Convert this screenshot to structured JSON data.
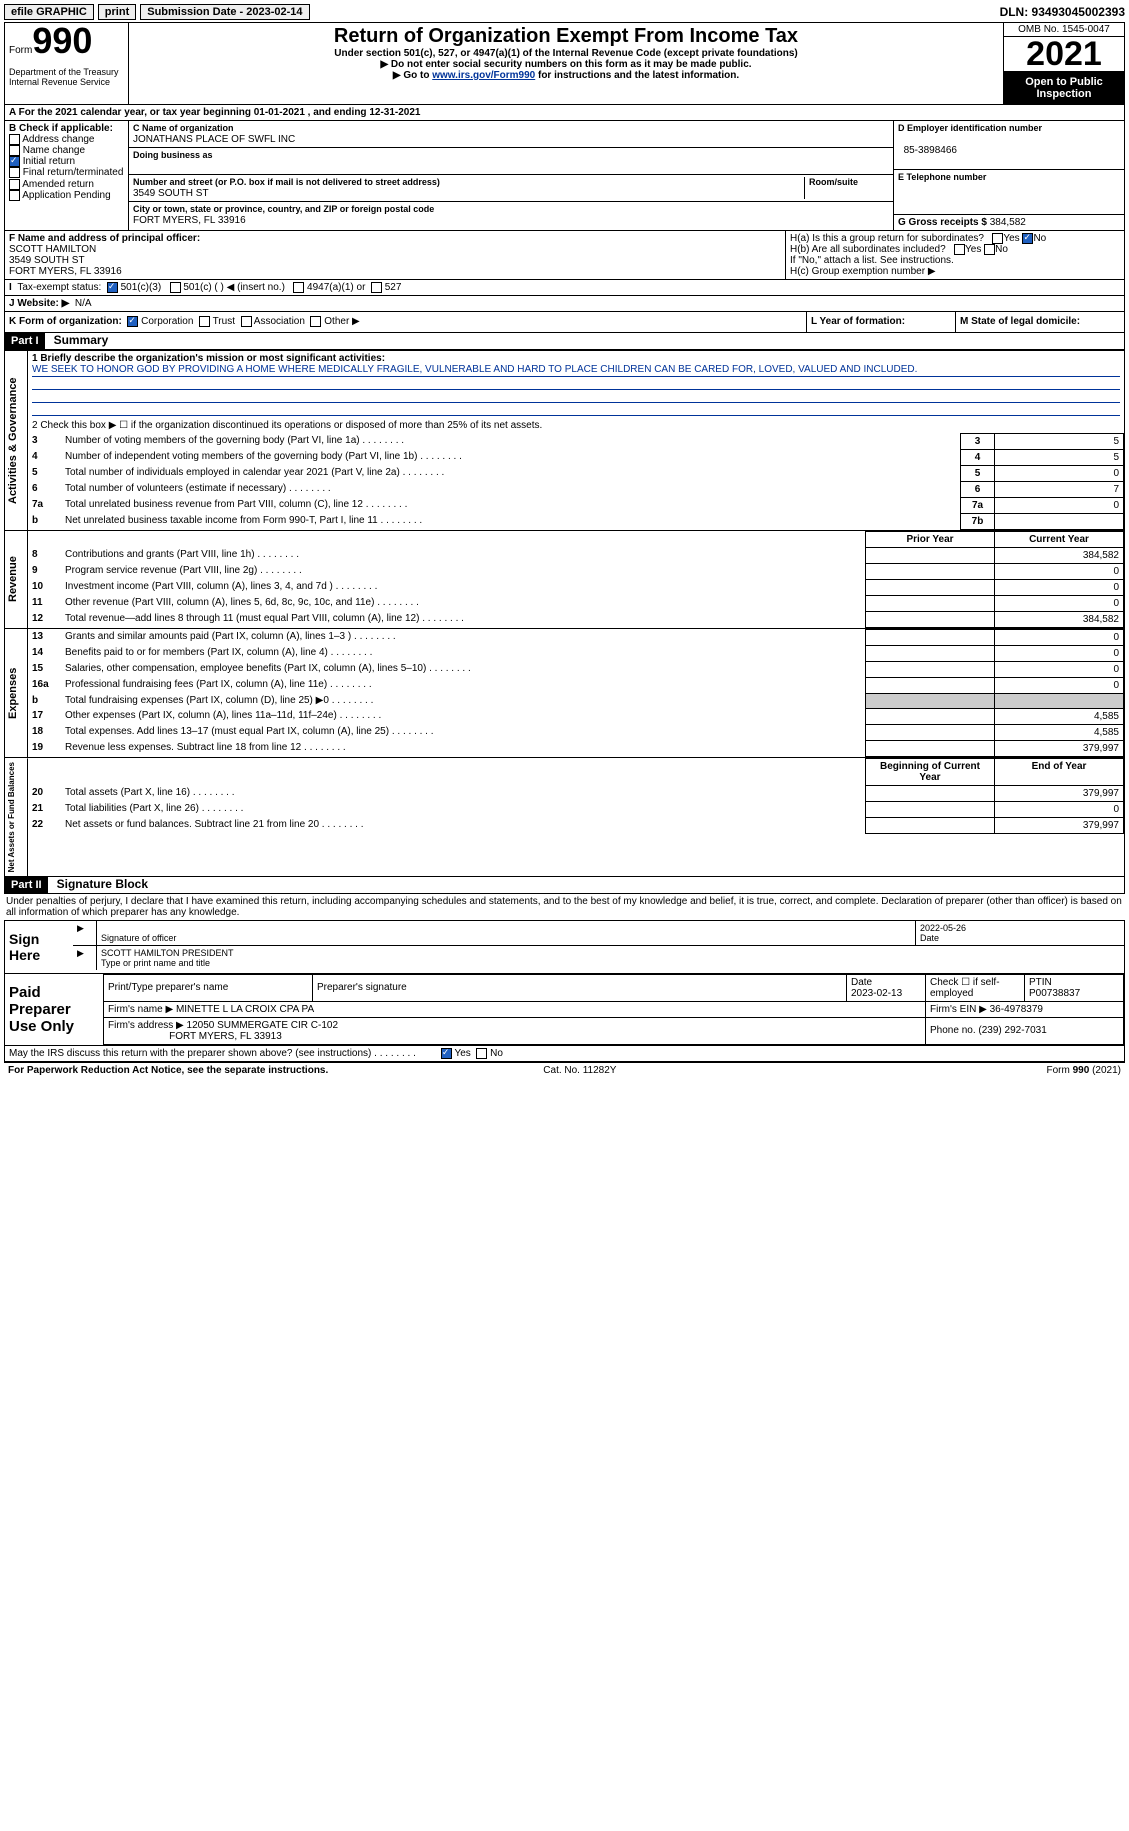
{
  "topbar": {
    "efile": "efile GRAPHIC",
    "print": "print",
    "submission": "Submission Date - 2023-02-14",
    "dln": "DLN: 93493045002393"
  },
  "header": {
    "form_label": "Form",
    "form_num": "990",
    "dept": "Department of the Treasury",
    "irs": "Internal Revenue Service",
    "title": "Return of Organization Exempt From Income Tax",
    "sub": "Under section 501(c), 527, or 4947(a)(1) of the Internal Revenue Code (except private foundations)",
    "instr1": "▶ Do not enter social security numbers on this form as it may be made public.",
    "instr2_pre": "▶ Go to ",
    "instr2_link": "www.irs.gov/Form990",
    "instr2_post": " for instructions and the latest information.",
    "omb": "OMB No. 1545-0047",
    "year": "2021",
    "open": "Open to Public Inspection"
  },
  "row_a": "A For the 2021 calendar year, or tax year beginning 01-01-2021    , and ending 12-31-2021",
  "section_b": {
    "header": "B Check if applicable:",
    "items": [
      "Address change",
      "Name change",
      "Initial return",
      "Final return/terminated",
      "Amended return",
      "Application Pending"
    ],
    "checked_idx": 2
  },
  "section_c": {
    "name_lbl": "C Name of organization",
    "name": "JONATHANS PLACE OF SWFL INC",
    "dba_lbl": "Doing business as",
    "addr_lbl": "Number and street (or P.O. box if mail is not delivered to street address)",
    "room_lbl": "Room/suite",
    "addr": "3549 SOUTH ST",
    "city_lbl": "City or town, state or province, country, and ZIP or foreign postal code",
    "city": "FORT MYERS, FL  33916"
  },
  "section_d": {
    "ein_lbl": "D Employer identification number",
    "ein": "85-3898466",
    "phone_lbl": "E Telephone number",
    "gross_lbl": "G Gross receipts $",
    "gross": "384,582"
  },
  "section_f": {
    "lbl": "F Name and address of principal officer:",
    "name": "SCOTT HAMILTON",
    "addr1": "3549 SOUTH ST",
    "addr2": "FORT MYERS, FL  33916"
  },
  "section_h": {
    "ha": "H(a)  Is this a group return for subordinates?",
    "hb": "H(b)  Are all subordinates included?",
    "hb_note": "If \"No,\" attach a list. See instructions.",
    "hc": "H(c)  Group exemption number ▶",
    "yes": "Yes",
    "no": "No"
  },
  "tax_status": {
    "lbl": "Tax-exempt status:",
    "opts": [
      "501(c)(3)",
      "501(c) (  ) ◀ (insert no.)",
      "4947(a)(1) or",
      "527"
    ]
  },
  "website": {
    "lbl": "J   Website: ▶",
    "val": "N/A"
  },
  "section_k": {
    "k_lbl": "K Form of organization:",
    "k_opts": [
      "Corporation",
      "Trust",
      "Association",
      "Other ▶"
    ],
    "l_lbl": "L Year of formation:",
    "m_lbl": "M State of legal domicile:"
  },
  "part1": {
    "hdr": "Part I",
    "title": "Summary"
  },
  "mission": {
    "lbl": "1   Briefly describe the organization's mission or most significant activities:",
    "text": "WE SEEK TO HONOR GOD BY PROVIDING A HOME WHERE MEDICALLY FRAGILE, VULNERABLE AND HARD TO PLACE CHILDREN CAN BE CARED FOR, LOVED, VALUED AND INCLUDED."
  },
  "line2": "2   Check this box ▶ ☐ if the organization discontinued its operations or disposed of more than 25% of its net assets.",
  "gov_lines": [
    {
      "n": "3",
      "t": "Number of voting members of the governing body (Part VI, line 1a)",
      "box": "3",
      "v": "5"
    },
    {
      "n": "4",
      "t": "Number of independent voting members of the governing body (Part VI, line 1b)",
      "box": "4",
      "v": "5"
    },
    {
      "n": "5",
      "t": "Total number of individuals employed in calendar year 2021 (Part V, line 2a)",
      "box": "5",
      "v": "0"
    },
    {
      "n": "6",
      "t": "Total number of volunteers (estimate if necessary)",
      "box": "6",
      "v": "7"
    },
    {
      "n": "7a",
      "t": "Total unrelated business revenue from Part VIII, column (C), line 12",
      "box": "7a",
      "v": "0"
    },
    {
      "n": "b",
      "t": "Net unrelated business taxable income from Form 990-T, Part I, line 11",
      "box": "7b",
      "v": ""
    }
  ],
  "col_headers": {
    "prior": "Prior Year",
    "current": "Current Year"
  },
  "rev_lines": [
    {
      "n": "8",
      "t": "Contributions and grants (Part VIII, line 1h)",
      "p": "",
      "c": "384,582"
    },
    {
      "n": "9",
      "t": "Program service revenue (Part VIII, line 2g)",
      "p": "",
      "c": "0"
    },
    {
      "n": "10",
      "t": "Investment income (Part VIII, column (A), lines 3, 4, and 7d )",
      "p": "",
      "c": "0"
    },
    {
      "n": "11",
      "t": "Other revenue (Part VIII, column (A), lines 5, 6d, 8c, 9c, 10c, and 11e)",
      "p": "",
      "c": "0"
    },
    {
      "n": "12",
      "t": "Total revenue—add lines 8 through 11 (must equal Part VIII, column (A), line 12)",
      "p": "",
      "c": "384,582"
    }
  ],
  "exp_lines": [
    {
      "n": "13",
      "t": "Grants and similar amounts paid (Part IX, column (A), lines 1–3 )",
      "p": "",
      "c": "0"
    },
    {
      "n": "14",
      "t": "Benefits paid to or for members (Part IX, column (A), line 4)",
      "p": "",
      "c": "0"
    },
    {
      "n": "15",
      "t": "Salaries, other compensation, employee benefits (Part IX, column (A), lines 5–10)",
      "p": "",
      "c": "0"
    },
    {
      "n": "16a",
      "t": "Professional fundraising fees (Part IX, column (A), line 11e)",
      "p": "",
      "c": "0"
    },
    {
      "n": "b",
      "t": "Total fundraising expenses (Part IX, column (D), line 25) ▶0",
      "p": "shade",
      "c": "shade"
    },
    {
      "n": "17",
      "t": "Other expenses (Part IX, column (A), lines 11a–11d, 11f–24e)",
      "p": "",
      "c": "4,585"
    },
    {
      "n": "18",
      "t": "Total expenses. Add lines 13–17 (must equal Part IX, column (A), line 25)",
      "p": "",
      "c": "4,585"
    },
    {
      "n": "19",
      "t": "Revenue less expenses. Subtract line 18 from line 12",
      "p": "",
      "c": "379,997"
    }
  ],
  "net_headers": {
    "begin": "Beginning of Current Year",
    "end": "End of Year"
  },
  "net_lines": [
    {
      "n": "20",
      "t": "Total assets (Part X, line 16)",
      "p": "",
      "c": "379,997"
    },
    {
      "n": "21",
      "t": "Total liabilities (Part X, line 26)",
      "p": "",
      "c": "0"
    },
    {
      "n": "22",
      "t": "Net assets or fund balances. Subtract line 21 from line 20",
      "p": "",
      "c": "379,997"
    }
  ],
  "vert_labels": {
    "gov": "Activities & Governance",
    "rev": "Revenue",
    "exp": "Expenses",
    "net": "Net Assets or Fund Balances"
  },
  "part2": {
    "hdr": "Part II",
    "title": "Signature Block"
  },
  "penalties": "Under penalties of perjury, I declare that I have examined this return, including accompanying schedules and statements, and to the best of my knowledge and belief, it is true, correct, and complete. Declaration of preparer (other than officer) is based on all information of which preparer has any knowledge.",
  "sign": {
    "here": "Sign Here",
    "sig_of": "Signature of officer",
    "date": "2022-05-26",
    "name": "SCOTT HAMILTON  PRESIDENT",
    "name_lbl": "Type or print name and title"
  },
  "paid": {
    "hdr": "Paid Preparer Use Only",
    "print_lbl": "Print/Type preparer's name",
    "sig_lbl": "Preparer's signature",
    "date_lbl": "Date",
    "date": "2023-02-13",
    "self_lbl": "Check ☐ if self-employed",
    "ptin_lbl": "PTIN",
    "ptin": "P00738837",
    "firm_name_lbl": "Firm's name    ▶",
    "firm_name": "MINETTE L LA CROIX CPA PA",
    "firm_ein_lbl": "Firm's EIN ▶",
    "firm_ein": "36-4978379",
    "firm_addr_lbl": "Firm's address ▶",
    "firm_addr": "12050 SUMMERGATE CIR C-102",
    "firm_city": "FORT MYERS, FL  33913",
    "phone_lbl": "Phone no.",
    "phone": "(239) 292-7031"
  },
  "discuss": "May the IRS discuss this return with the preparer shown above? (see instructions)",
  "footer": {
    "left": "For Paperwork Reduction Act Notice, see the separate instructions.",
    "mid": "Cat. No. 11282Y",
    "right": "Form 990 (2021)"
  }
}
